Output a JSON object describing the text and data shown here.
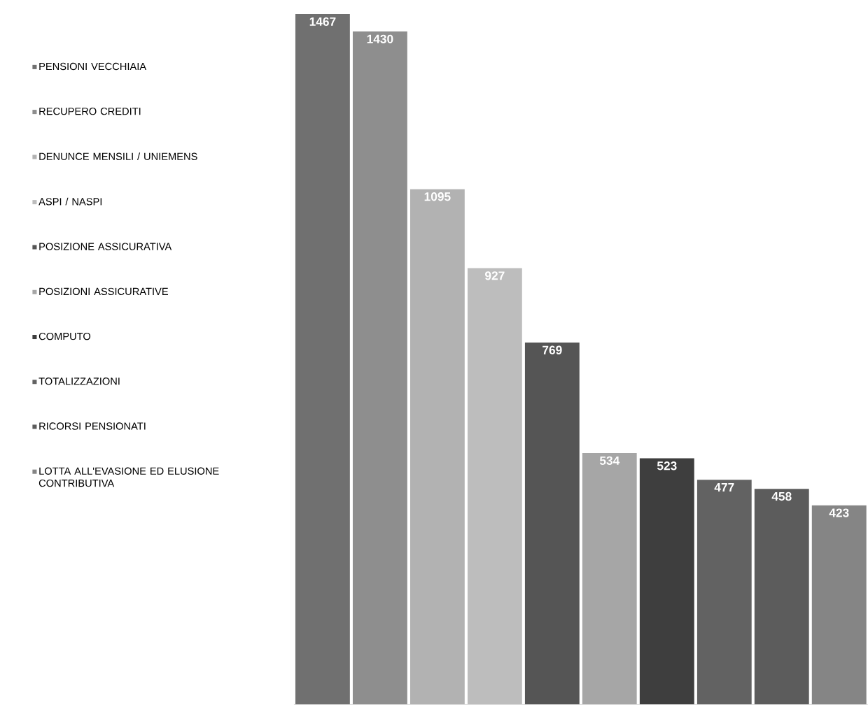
{
  "chart_data": {
    "type": "bar",
    "categories": [
      null
    ],
    "series": [
      {
        "name": "PENSIONI VECCHIAIA",
        "color": "#707070",
        "values": [
          1467
        ]
      },
      {
        "name": "RECUPERO CREDITI",
        "color": "#8e8e8e",
        "values": [
          1430
        ]
      },
      {
        "name": "DENUNCE MENSILI / UNIEMENS",
        "color": "#b2b2b2",
        "values": [
          1095
        ]
      },
      {
        "name": "ASPI / NASPI",
        "color": "#bdbdbd",
        "values": [
          927
        ]
      },
      {
        "name": "POSIZIONE ASSICURATIVA",
        "color": "#555555",
        "values": [
          769
        ]
      },
      {
        "name": "POSIZIONI ASSICURATIVE",
        "color": "#a6a6a6",
        "values": [
          534
        ]
      },
      {
        "name": "COMPUTO",
        "color": "#3e3e3e",
        "values": [
          523
        ]
      },
      {
        "name": "TOTALIZZAZIONI",
        "color": "#626262",
        "values": [
          477
        ]
      },
      {
        "name": "RICORSI PENSIONATI",
        "color": "#5c5c5c",
        "values": [
          458
        ]
      },
      {
        "name": "LOTTA ALL'EVASIONE ED ELUSIONE CONTRIBUTIVA",
        "color": "#858585",
        "values": [
          423
        ]
      }
    ],
    "ylim": [
      0,
      1475
    ],
    "legend": "left",
    "data_labels": true
  }
}
